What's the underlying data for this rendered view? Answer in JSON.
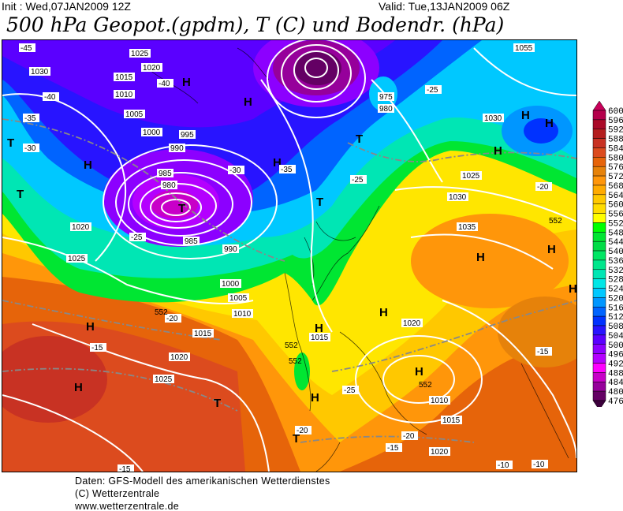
{
  "header": {
    "init": "Init : Wed,07JAN2009 12Z",
    "valid": "Valid: Tue,13JAN2009 06Z",
    "title": "500 hPa Geopot.(gpdm), T (C) und Bodendr. (hPa)"
  },
  "legend": {
    "labels": [
      "600",
      "596",
      "592",
      "588",
      "584",
      "580",
      "576",
      "572",
      "568",
      "564",
      "560",
      "556",
      "552",
      "548",
      "544",
      "540",
      "536",
      "532",
      "528",
      "524",
      "520",
      "516",
      "512",
      "508",
      "504",
      "500",
      "496",
      "492",
      "488",
      "484",
      "480",
      "476"
    ],
    "colors": [
      "#b4004b",
      "#aa0a28",
      "#b41e1e",
      "#c83223",
      "#dc4b1e",
      "#e6640a",
      "#e6820a",
      "#ff960a",
      "#ffaa00",
      "#ffc800",
      "#ffdc00",
      "#ffff00",
      "#00ff00",
      "#00e632",
      "#00dc46",
      "#00e664",
      "#00e68c",
      "#00e6b4",
      "#00e6e6",
      "#00c8ff",
      "#0096ff",
      "#0064ff",
      "#0032ff",
      "#2814ff",
      "#5a00ff",
      "#8c00ff",
      "#b400ff",
      "#ff00ff",
      "#c800c8",
      "#96009b",
      "#640064"
    ],
    "top_arrow_color": "#c8005a",
    "bottom_arrow_color": "#3c003c"
  },
  "map": {
    "pressure_centers": [
      "H",
      "H",
      "H",
      "H",
      "T",
      "T",
      "T",
      "T",
      "T",
      "H",
      "H",
      "H",
      "H",
      "H",
      "H",
      "H",
      "H",
      "H",
      "T",
      "T",
      "H",
      "H",
      "H"
    ],
    "isobar_labels": [
      "1025",
      "1030",
      "1015",
      "1010",
      "1020",
      "1005",
      "1000",
      "995",
      "990",
      "985",
      "980",
      "1035",
      "1025",
      "1030",
      "1020",
      "1015",
      "1010",
      "1005",
      "1000",
      "990",
      "985",
      "1020",
      "1025",
      "1015",
      "1020",
      "1025",
      "1015",
      "1010",
      "1020",
      "980",
      "975",
      "1055",
      "1030"
    ],
    "temperature_labels": [
      "-45",
      "-40",
      "-35",
      "-30",
      "-25",
      "-20",
      "-15",
      "-10",
      "-40",
      "-35",
      "-30",
      "-25",
      "-20",
      "-15",
      "-25",
      "-20",
      "-15",
      "-25",
      "-20",
      "-15",
      "-10"
    ],
    "geopotential_labels": [
      "552",
      "552",
      "552",
      "552",
      "552"
    ]
  },
  "footer": {
    "line1": "Daten: GFS-Modell des amerikanischen Wetterdienstes",
    "line2": "(C) Wetterzentrale",
    "line3": "www.wetterzentrale.de"
  }
}
